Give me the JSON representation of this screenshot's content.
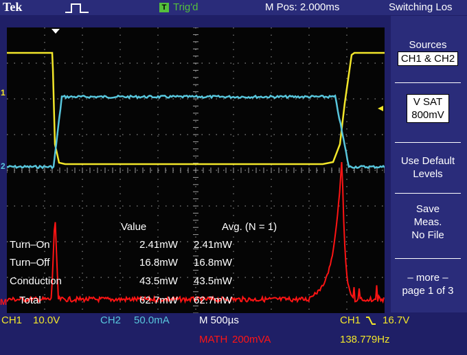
{
  "header": {
    "brand": "Tek",
    "trigger_badge": "T",
    "trigger_status": "Trig'd",
    "main_position": "M Pos: 2.000ms",
    "menu_title": "Switching Los"
  },
  "side_menu": {
    "sources_label": "Sources",
    "sources_value": "CH1 & CH2",
    "vsat_label": "V SAT",
    "vsat_value": "800mV",
    "use_default_line1": "Use Default",
    "use_default_line2": "Levels",
    "save_line1": "Save",
    "save_line2": "Meas.",
    "save_line3": "No File",
    "more_line1": "– more –",
    "more_line2": "page 1 of 3"
  },
  "measurements": {
    "header_value": "Value",
    "header_avg": "Avg. (N = 1)",
    "rows": [
      {
        "label": "Turn–On",
        "value": "2.41mW",
        "avg": "2.41mW"
      },
      {
        "label": "Turn–Off",
        "value": "16.8mW",
        "avg": "16.8mW"
      },
      {
        "label": "Conduction",
        "value": "43.5mW",
        "avg": "43.5mW"
      },
      {
        "label": "Total",
        "value": "62.7mW",
        "avg": "62.7mW"
      }
    ]
  },
  "markers": {
    "ch1_ref": "1",
    "ch2_ref": "2",
    "math_ref": "M"
  },
  "status_bar": {
    "ch1_label": "CH1",
    "ch1_scale": "10.0V",
    "ch2_label": "CH2",
    "ch2_scale": "50.0mA",
    "timebase": "M 500µs",
    "trigger_source": "CH1",
    "trigger_slope_icon": "falling-edge-icon",
    "trigger_level": "16.7V",
    "math_label": "MATH",
    "math_scale": "200mVA",
    "frequency": "138.779Hz"
  },
  "colors": {
    "ch1": "#f2e62a",
    "ch2": "#58c6dc",
    "math": "#ff1414",
    "trigger": "#54c03c",
    "frame": "#2a2c7a",
    "text": "#ffffff"
  }
}
